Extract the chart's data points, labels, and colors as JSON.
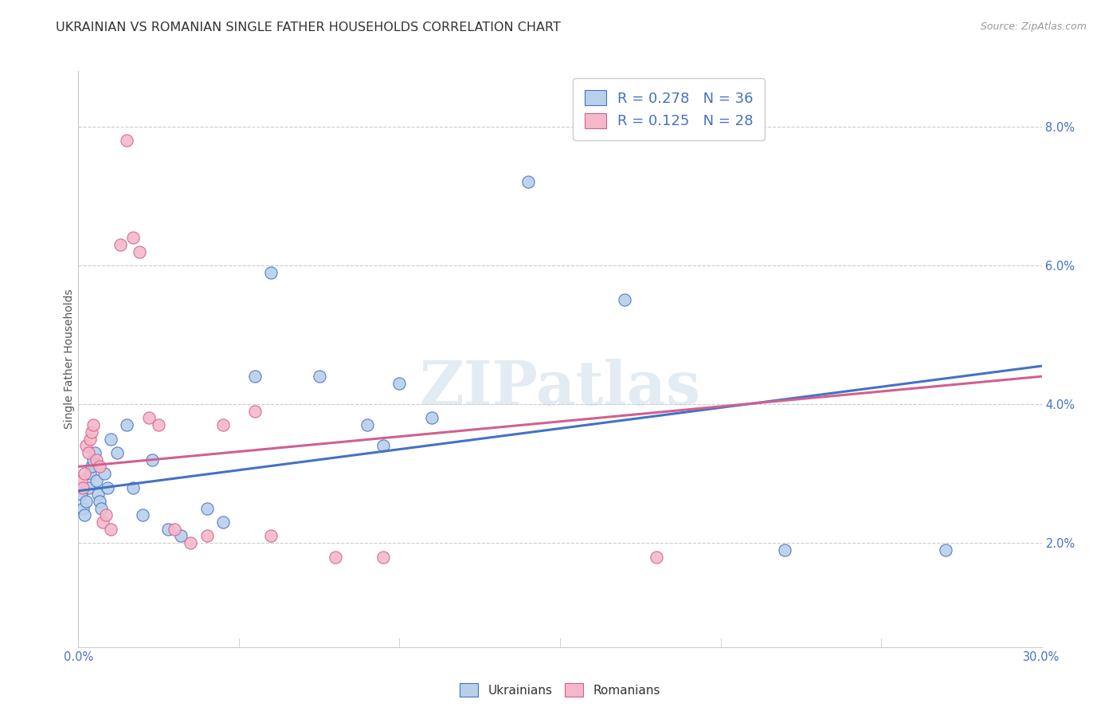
{
  "title": "UKRAINIAN VS ROMANIAN SINGLE FATHER HOUSEHOLDS CORRELATION CHART",
  "source": "Source: ZipAtlas.com",
  "ylabel": "Single Father Households",
  "legend_blue_R": "0.278",
  "legend_blue_N": "36",
  "legend_pink_R": "0.125",
  "legend_pink_N": "28",
  "watermark": "ZIPatlas",
  "blue_color": "#b8d0ea",
  "blue_line_color": "#4472c4",
  "pink_color": "#f5b8c8",
  "pink_line_color": "#d06090",
  "blue_scatter": [
    [
      0.1,
      2.7
    ],
    [
      0.15,
      2.5
    ],
    [
      0.2,
      2.4
    ],
    [
      0.25,
      2.6
    ],
    [
      0.3,
      2.8
    ],
    [
      0.35,
      3.0
    ],
    [
      0.4,
      3.1
    ],
    [
      0.45,
      3.2
    ],
    [
      0.5,
      3.3
    ],
    [
      0.55,
      2.9
    ],
    [
      0.6,
      2.7
    ],
    [
      0.65,
      2.6
    ],
    [
      0.7,
      2.5
    ],
    [
      0.8,
      3.0
    ],
    [
      0.9,
      2.8
    ],
    [
      1.0,
      3.5
    ],
    [
      1.2,
      3.3
    ],
    [
      1.5,
      3.7
    ],
    [
      1.7,
      2.8
    ],
    [
      2.0,
      2.4
    ],
    [
      2.3,
      3.2
    ],
    [
      2.8,
      2.2
    ],
    [
      3.2,
      2.1
    ],
    [
      4.0,
      2.5
    ],
    [
      4.5,
      2.3
    ],
    [
      5.5,
      4.4
    ],
    [
      6.0,
      5.9
    ],
    [
      7.5,
      4.4
    ],
    [
      9.0,
      3.7
    ],
    [
      9.5,
      3.4
    ],
    [
      10.0,
      4.3
    ],
    [
      11.0,
      3.8
    ],
    [
      14.0,
      7.2
    ],
    [
      17.0,
      5.5
    ],
    [
      22.0,
      1.9
    ],
    [
      27.0,
      1.9
    ]
  ],
  "pink_scatter": [
    [
      0.1,
      2.9
    ],
    [
      0.15,
      2.8
    ],
    [
      0.2,
      3.0
    ],
    [
      0.25,
      3.4
    ],
    [
      0.3,
      3.3
    ],
    [
      0.35,
      3.5
    ],
    [
      0.4,
      3.6
    ],
    [
      0.45,
      3.7
    ],
    [
      0.55,
      3.2
    ],
    [
      0.65,
      3.1
    ],
    [
      0.75,
      2.3
    ],
    [
      0.85,
      2.4
    ],
    [
      1.0,
      2.2
    ],
    [
      1.3,
      6.3
    ],
    [
      1.5,
      7.8
    ],
    [
      1.7,
      6.4
    ],
    [
      1.9,
      6.2
    ],
    [
      2.2,
      3.8
    ],
    [
      2.5,
      3.7
    ],
    [
      3.0,
      2.2
    ],
    [
      3.5,
      2.0
    ],
    [
      4.0,
      2.1
    ],
    [
      4.5,
      3.7
    ],
    [
      5.5,
      3.9
    ],
    [
      6.0,
      2.1
    ],
    [
      8.0,
      1.8
    ],
    [
      9.5,
      1.8
    ],
    [
      18.0,
      1.8
    ]
  ],
  "blue_trendline": {
    "x_start": 0.0,
    "y_start": 2.75,
    "x_end": 30.0,
    "y_end": 4.55
  },
  "pink_trendline": {
    "x_start": 0.0,
    "y_start": 3.1,
    "x_end": 30.0,
    "y_end": 4.4
  },
  "xlim": [
    0,
    30
  ],
  "ylim": [
    0.5,
    8.8
  ],
  "x_ticks": [
    0,
    5,
    10,
    15,
    20,
    25,
    30
  ],
  "y_ticks": [
    2.0,
    4.0,
    6.0,
    8.0
  ],
  "title_fontsize": 11.5,
  "source_fontsize": 9,
  "scatter_size": 120,
  "background_color": "#ffffff",
  "grid_color": "#cccccc"
}
